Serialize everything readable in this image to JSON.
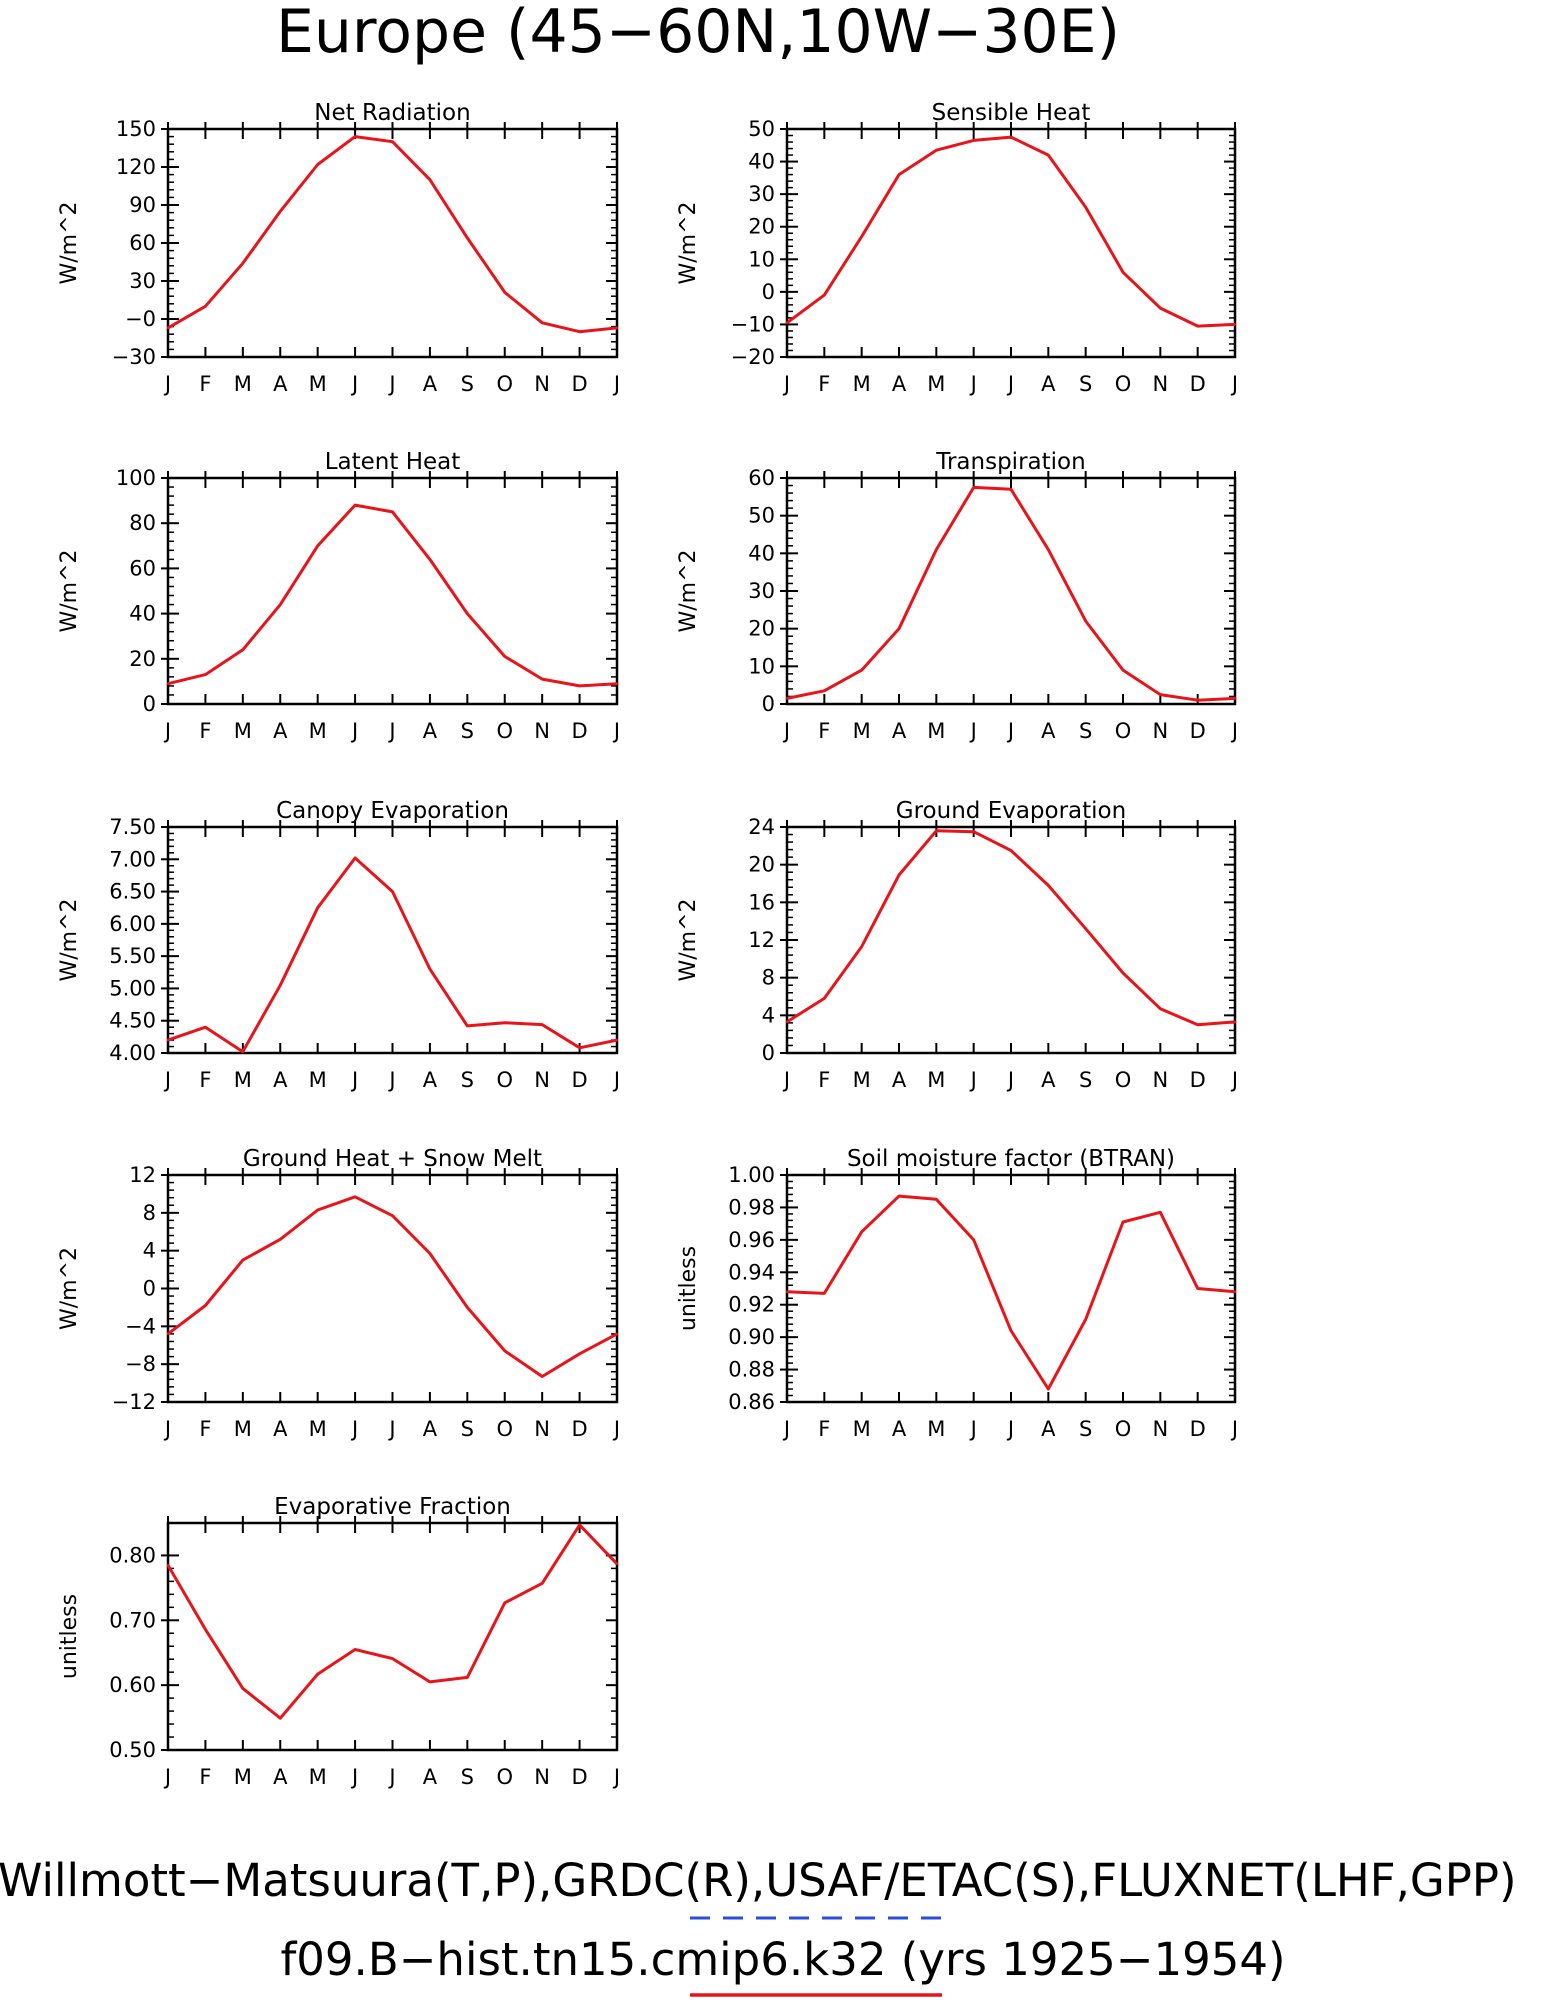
{
  "figure": {
    "title": "Europe (45−60N,10W−30E)",
    "footer_line1": "Willmott−Matsuura(T,P),GRDC(R),USAF/ETAC(S),FLUXNET(LHF,GPP)",
    "footer_line2": "f09.B−hist.tn15.cmip6.k32 (yrs 1925−1954)",
    "line_color": "#e8141a",
    "obs_dash_color": "#2a4fd8"
  },
  "chart_data": [
    {
      "type": "line",
      "title": "Net Radiation",
      "ylabel": "W/m^2",
      "categories": [
        "J",
        "F",
        "M",
        "A",
        "M",
        "J",
        "J",
        "A",
        "S",
        "O",
        "N",
        "D",
        "J"
      ],
      "ylim": [
        -30,
        150
      ],
      "yticks": [
        -30,
        0,
        30,
        60,
        90,
        120,
        150
      ],
      "ytick_labels": [
        "−30",
        "−0",
        "30",
        "60",
        "90",
        "120",
        "150"
      ],
      "values": [
        -7,
        10,
        44,
        85,
        122,
        144,
        140,
        110,
        64,
        21,
        -3,
        -10,
        -7
      ]
    },
    {
      "type": "line",
      "title": "Sensible Heat",
      "ylabel": "W/m^2",
      "categories": [
        "J",
        "F",
        "M",
        "A",
        "M",
        "J",
        "J",
        "A",
        "S",
        "O",
        "N",
        "D",
        "J"
      ],
      "ylim": [
        -20,
        50
      ],
      "yticks": [
        -20,
        -10,
        0,
        10,
        20,
        30,
        40,
        50
      ],
      "ytick_labels": [
        "−20",
        "−10",
        "0",
        "10",
        "20",
        "30",
        "40",
        "50"
      ],
      "values": [
        -9.5,
        -1,
        17,
        36,
        43.5,
        46.5,
        47.5,
        42,
        26,
        6,
        -5,
        -10.5,
        -10
      ]
    },
    {
      "type": "line",
      "title": "Latent Heat",
      "ylabel": "W/m^2",
      "categories": [
        "J",
        "F",
        "M",
        "A",
        "M",
        "J",
        "J",
        "A",
        "S",
        "O",
        "N",
        "D",
        "J"
      ],
      "ylim": [
        0,
        100
      ],
      "yticks": [
        0,
        20,
        40,
        60,
        80,
        100
      ],
      "ytick_labels": [
        "0",
        "20",
        "40",
        "60",
        "80",
        "100"
      ],
      "values": [
        9,
        13,
        24,
        44,
        70,
        88,
        85,
        64,
        40,
        21,
        11,
        8,
        9
      ]
    },
    {
      "type": "line",
      "title": "Transpiration",
      "ylabel": "W/m^2",
      "categories": [
        "J",
        "F",
        "M",
        "A",
        "M",
        "J",
        "J",
        "A",
        "S",
        "O",
        "N",
        "D",
        "J"
      ],
      "ylim": [
        0,
        60
      ],
      "yticks": [
        0,
        10,
        20,
        30,
        40,
        50,
        60
      ],
      "ytick_labels": [
        "0",
        "10",
        "20",
        "30",
        "40",
        "50",
        "60"
      ],
      "values": [
        1.5,
        3.5,
        9,
        20,
        41,
        57.5,
        57,
        41,
        22,
        9,
        2.5,
        1,
        1.5
      ]
    },
    {
      "type": "line",
      "title": "Canopy Evaporation",
      "ylabel": "W/m^2",
      "categories": [
        "J",
        "F",
        "M",
        "A",
        "M",
        "J",
        "J",
        "A",
        "S",
        "O",
        "N",
        "D",
        "J"
      ],
      "ylim": [
        4.0,
        7.5
      ],
      "yticks": [
        4.0,
        4.5,
        5.0,
        5.5,
        6.0,
        6.5,
        7.0,
        7.5
      ],
      "ytick_labels": [
        "4.00",
        "4.50",
        "5.00",
        "5.50",
        "6.00",
        "6.50",
        "7.00",
        "7.50"
      ],
      "values": [
        4.2,
        4.4,
        4.02,
        5.05,
        6.25,
        7.02,
        6.5,
        5.3,
        4.42,
        4.47,
        4.44,
        4.08,
        4.2
      ]
    },
    {
      "type": "line",
      "title": "Ground Evaporation",
      "ylabel": "W/m^2",
      "categories": [
        "J",
        "F",
        "M",
        "A",
        "M",
        "J",
        "J",
        "A",
        "S",
        "O",
        "N",
        "D",
        "J"
      ],
      "ylim": [
        0,
        24
      ],
      "yticks": [
        0,
        4,
        8,
        12,
        16,
        20,
        24
      ],
      "ytick_labels": [
        "0",
        "4",
        "8",
        "12",
        "16",
        "20",
        "24"
      ],
      "values": [
        3.3,
        5.8,
        11.3,
        18.9,
        23.6,
        23.5,
        21.5,
        17.8,
        13.2,
        8.5,
        4.7,
        3.0,
        3.3
      ]
    },
    {
      "type": "line",
      "title": "Ground Heat + Snow Melt",
      "ylabel": "W/m^2",
      "categories": [
        "J",
        "F",
        "M",
        "A",
        "M",
        "J",
        "J",
        "A",
        "S",
        "O",
        "N",
        "D",
        "J"
      ],
      "ylim": [
        -12,
        12
      ],
      "yticks": [
        -12,
        -8,
        -4,
        0,
        4,
        8,
        12
      ],
      "ytick_labels": [
        "−12",
        "−8",
        "−4",
        "0",
        "4",
        "8",
        "12"
      ],
      "values": [
        -4.8,
        -1.8,
        3.0,
        5.2,
        8.3,
        9.7,
        7.7,
        3.7,
        -2.0,
        -6.6,
        -9.3,
        -6.9,
        -4.8
      ]
    },
    {
      "type": "line",
      "title": "Soil moisture factor (BTRAN)",
      "ylabel": "unitless",
      "categories": [
        "J",
        "F",
        "M",
        "A",
        "M",
        "J",
        "J",
        "A",
        "S",
        "O",
        "N",
        "D",
        "J"
      ],
      "ylim": [
        0.86,
        1.0
      ],
      "yticks": [
        0.86,
        0.88,
        0.9,
        0.92,
        0.94,
        0.96,
        0.98,
        1.0
      ],
      "ytick_labels": [
        "0.86",
        "0.88",
        "0.90",
        "0.92",
        "0.94",
        "0.96",
        "0.98",
        "1.00"
      ],
      "values": [
        0.928,
        0.927,
        0.965,
        0.987,
        0.985,
        0.96,
        0.904,
        0.868,
        0.911,
        0.971,
        0.977,
        0.93,
        0.928
      ]
    },
    {
      "type": "line",
      "title": "Evaporative Fraction",
      "ylabel": "unitless",
      "categories": [
        "J",
        "F",
        "M",
        "A",
        "M",
        "J",
        "J",
        "A",
        "S",
        "O",
        "N",
        "D",
        "J"
      ],
      "ylim": [
        0.5,
        0.85
      ],
      "yticks": [
        0.5,
        0.6,
        0.7,
        0.8
      ],
      "ytick_labels": [
        "0.50",
        "0.60",
        "0.70",
        "0.80"
      ],
      "values": [
        0.785,
        0.686,
        0.595,
        0.549,
        0.617,
        0.655,
        0.641,
        0.605,
        0.612,
        0.727,
        0.757,
        0.847,
        0.787
      ]
    }
  ]
}
